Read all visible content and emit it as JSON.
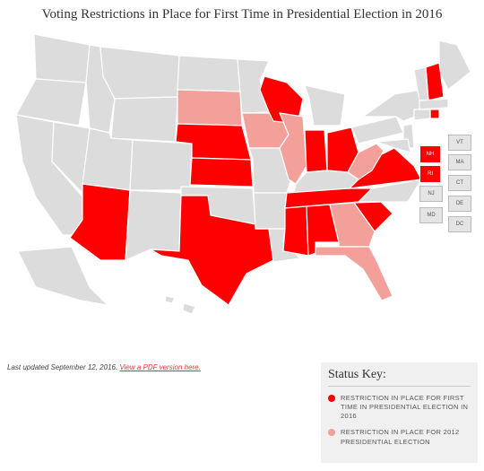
{
  "title": "Voting Restrictions in Place for First Time in Presidential Election in 2016",
  "map": {
    "base_color": "#dcdcdc"
  },
  "small_states": [
    {
      "label": "NH",
      "color": "#ff0000"
    },
    {
      "label": "RI",
      "color": "#ff0000"
    },
    {
      "label": "VT",
      "color": "#e4e4e4"
    },
    {
      "label": "MA",
      "color": "#e4e4e4"
    },
    {
      "label": "CT",
      "color": "#e4e4e4"
    },
    {
      "label": "NJ",
      "color": "#e4e4e4"
    },
    {
      "label": "DE",
      "color": "#e4e4e4"
    },
    {
      "label": "MD",
      "color": "#e4e4e4"
    },
    {
      "label": "DC",
      "color": "#e4e4e4"
    }
  ],
  "footer": {
    "updated": "Last updated September 12, 2016.",
    "link": "View a PDF version here."
  },
  "status_key": {
    "title": "Status Key:",
    "items": [
      {
        "label": "RESTRICTION IN PLACE FOR FIRST TIME IN PRESIDENTIAL ELECTION IN 2016",
        "color": "#ff0000"
      },
      {
        "label": "RESTRICTION IN PLACE FOR 2012 PRESIDENTIAL ELECTION",
        "color": "#f4a09a"
      }
    ]
  }
}
